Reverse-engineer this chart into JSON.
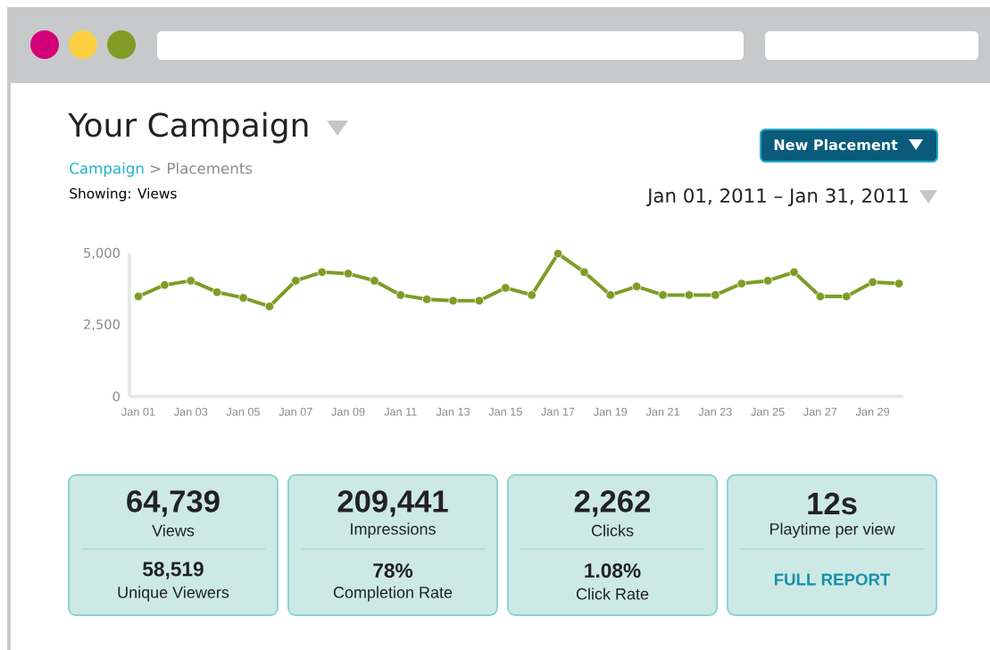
{
  "chart_data": {
    "type": "line",
    "title": "Your Campaign",
    "categories": [
      "Jan 01",
      null,
      "Jan 03",
      null,
      "Jan 05",
      null,
      "Jan 07",
      null,
      "Jan 09",
      null,
      "Jan 11",
      null,
      "Jan 13",
      null,
      "Jan 15",
      null,
      "Jan 17",
      null,
      "Jan 19",
      null,
      "Jan 21",
      null,
      "Jan 23",
      null,
      "Jan 25",
      null,
      "Jan 27",
      null,
      "Jan 29",
      null
    ],
    "values": [
      3500,
      3900,
      4050,
      3650,
      3450,
      3150,
      4050,
      4350,
      4300,
      4050,
      3550,
      3400,
      3350,
      3350,
      3800,
      3550,
      5000,
      4350,
      3550,
      3850,
      3550,
      3550,
      3550,
      3950,
      4050,
      4350,
      3500,
      3500,
      4000,
      3950
    ],
    "color": "#7f9c26",
    "marker": "circle",
    "line_style": "solid",
    "ylim": [
      0,
      5000
    ],
    "yticks": [
      0,
      {
        "value": 2500,
        "label": "2,500"
      },
      {
        "value": 5000,
        "label": "5,000"
      }
    ],
    "annotations": [
      "Campaign",
      "> Placements",
      "Showing: Views",
      "New Placement",
      "Jan 01, 2011 – Jan 31, 2011",
      "64,739",
      "Views",
      "58,519",
      "Unique Viewers",
      "209,441",
      "Impressions",
      "78%",
      "Completion Rate",
      "2,262",
      "Clicks",
      "1.08%",
      "Click Rate",
      "12s",
      "Playtime per view",
      "FULL REPORT"
    ]
  }
}
